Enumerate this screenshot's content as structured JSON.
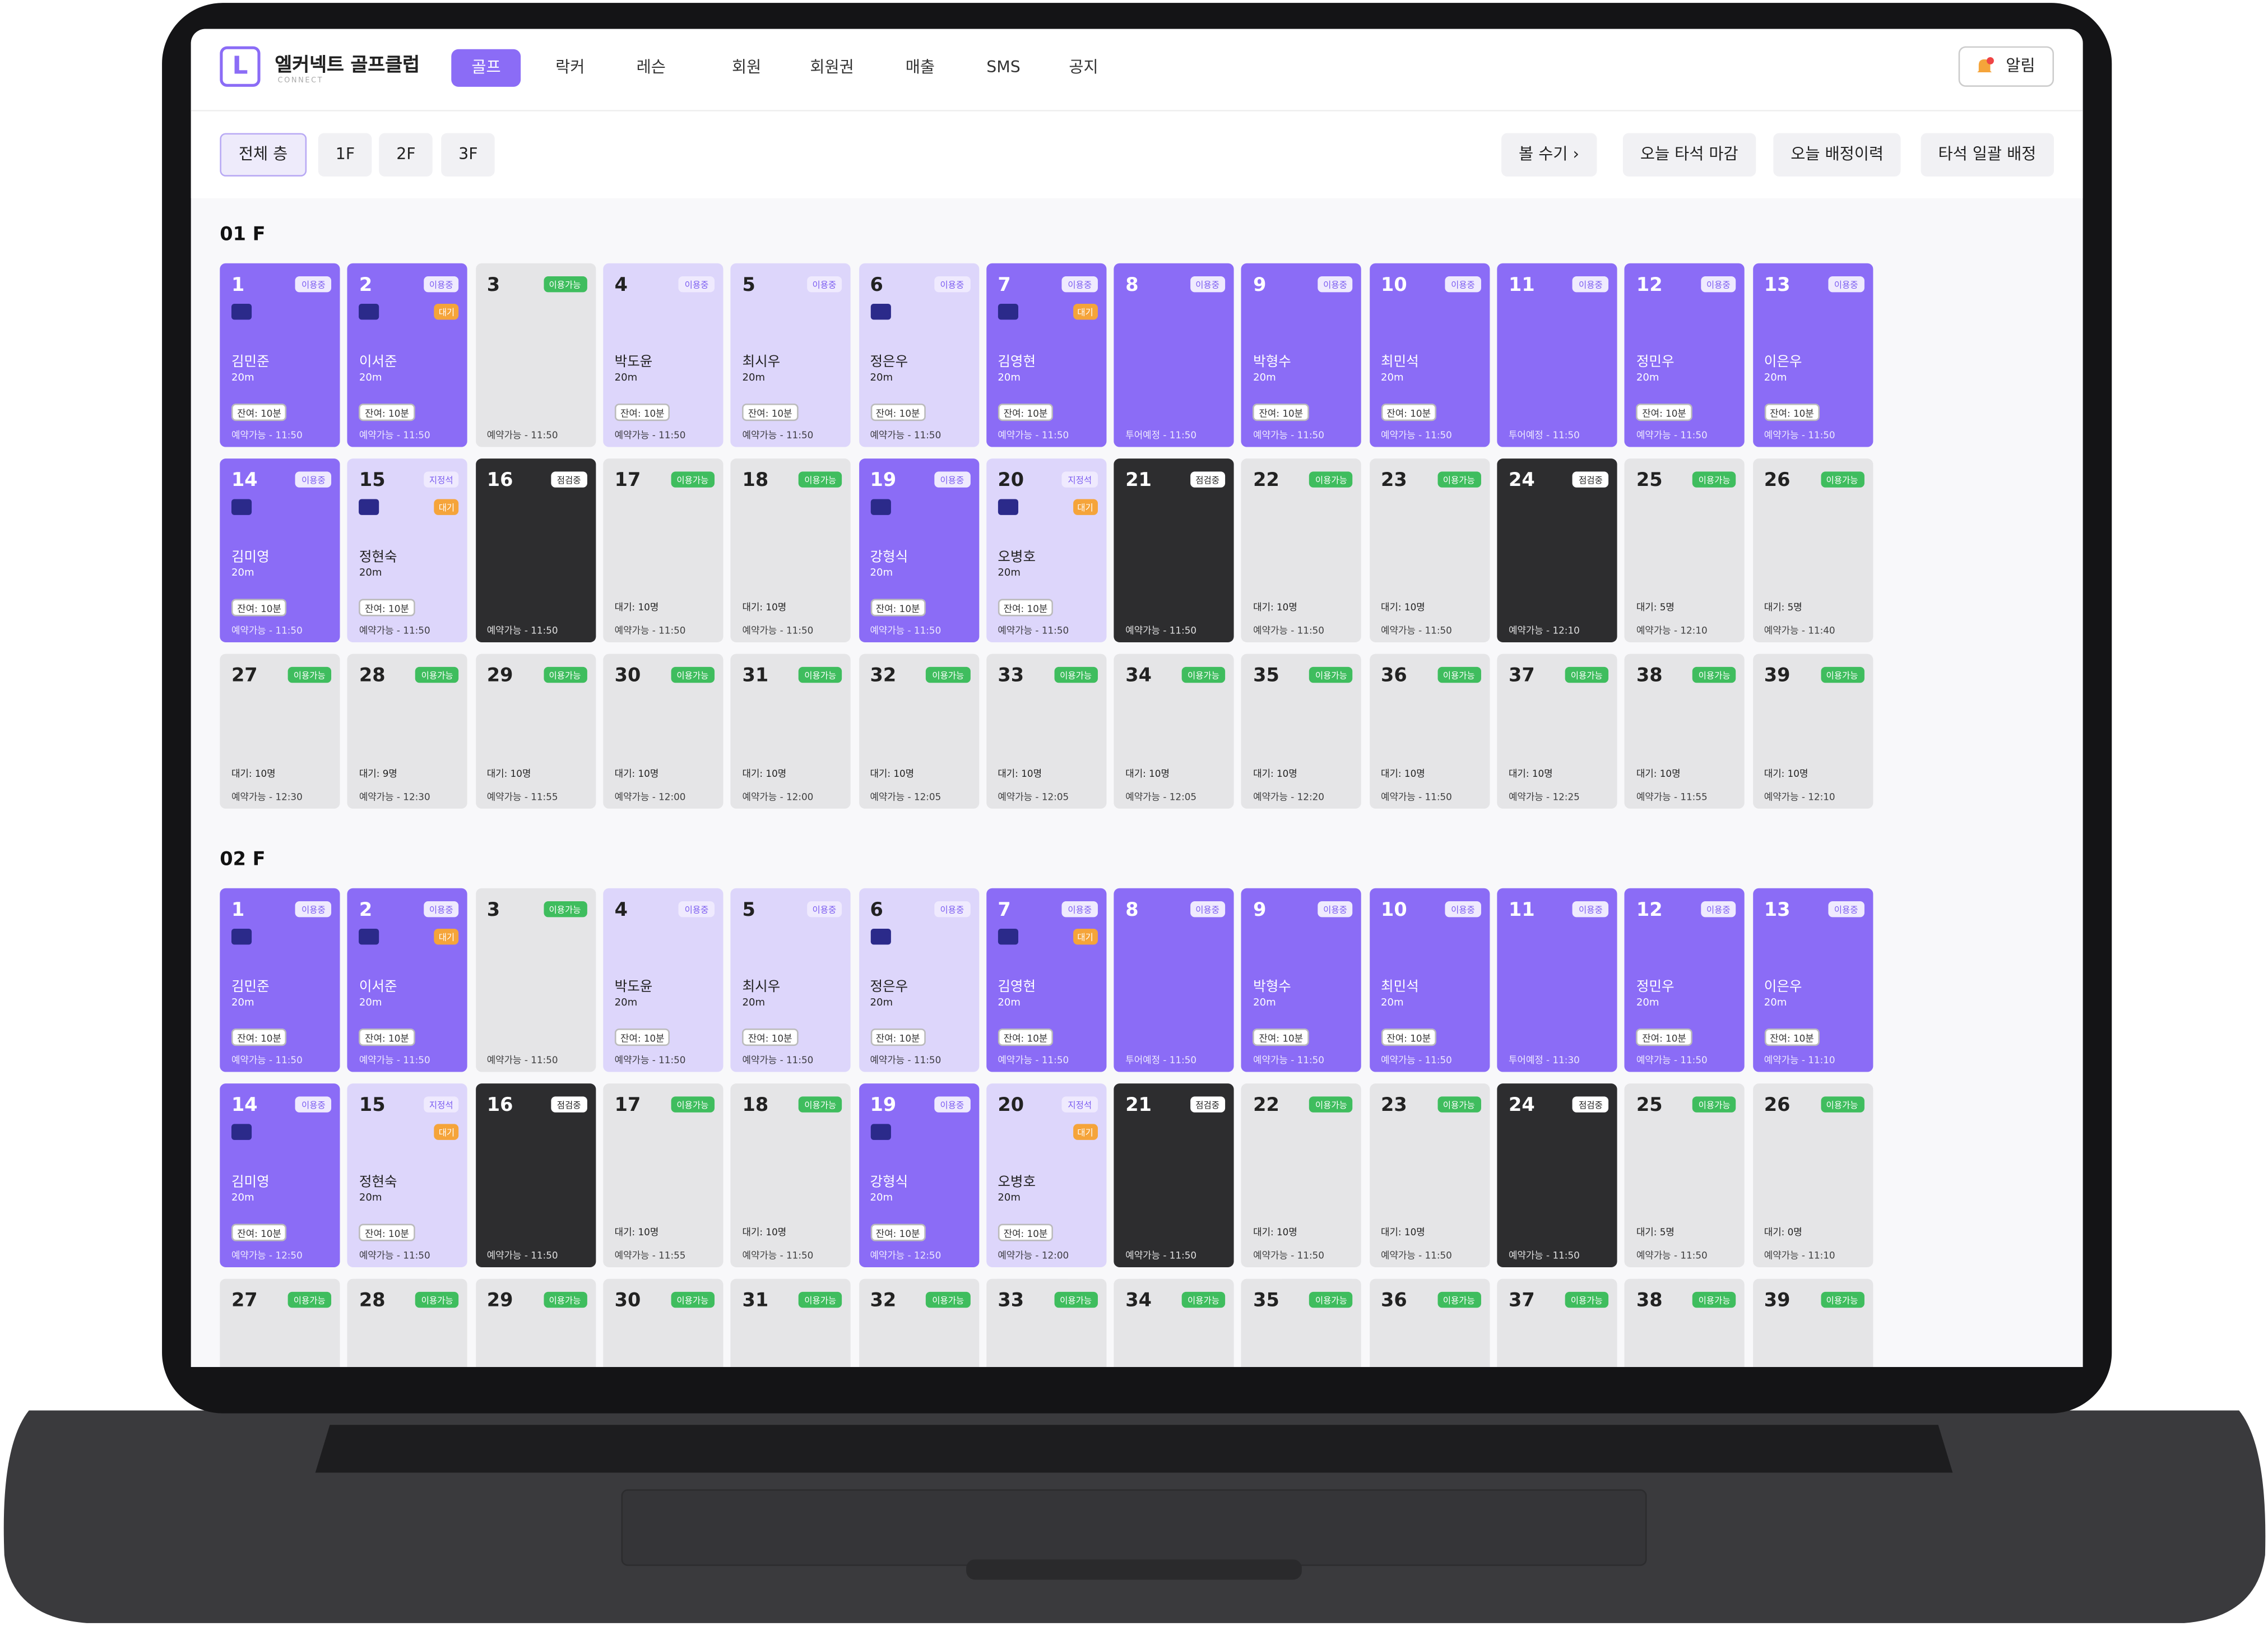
{
  "header": {
    "logo": "L",
    "title": "엘커넥트 골프클럽",
    "subtitle": "CONNECT",
    "nav": [
      {
        "label": "골프",
        "active": true
      },
      {
        "label": "락커"
      },
      {
        "label": "레슨"
      },
      {
        "label": "회원"
      },
      {
        "label": "회원권"
      },
      {
        "label": "매출"
      },
      {
        "label": "SMS"
      },
      {
        "label": "공지"
      }
    ],
    "alert": "알림"
  },
  "toolbar": {
    "filters": [
      {
        "label": "전체 층",
        "active": true
      },
      {
        "label": "1F"
      },
      {
        "label": "2F"
      },
      {
        "label": "3F"
      }
    ],
    "actions": [
      "볼 수기",
      "오늘 타석 마감",
      "오늘 배정이력",
      "타석 일괄 배정"
    ]
  },
  "floors": [
    {
      "title": "01 F",
      "bays": [
        {
          "no": "1",
          "style": "use",
          "badge": "이용중",
          "icon": true,
          "name": "김민준",
          "dist": "20m",
          "chip": "잔여: 10분",
          "foot": "예약가능 - 11:50"
        },
        {
          "no": "2",
          "style": "use",
          "badge": "이용중",
          "icon": true,
          "flag": "대기",
          "name": "이서준",
          "dist": "20m",
          "chip": "잔여: 10분",
          "foot": "예약가능 - 11:50"
        },
        {
          "no": "3",
          "style": "free",
          "badge": "이용가능",
          "foot": "예약가능 - 11:50"
        },
        {
          "no": "4",
          "style": "resv",
          "badge": "이용중",
          "name": "박도윤",
          "dist": "20m",
          "chip": "잔여: 10분",
          "foot": "예약가능 - 11:50"
        },
        {
          "no": "5",
          "style": "resv",
          "badge": "이용중",
          "name": "최시우",
          "dist": "20m",
          "chip": "잔여: 10분",
          "foot": "예약가능 - 11:50"
        },
        {
          "no": "6",
          "style": "resv",
          "badge": "이용중",
          "icon": true,
          "name": "정은우",
          "dist": "20m",
          "chip": "잔여: 10분",
          "foot": "예약가능 - 11:50"
        },
        {
          "no": "7",
          "style": "use",
          "badge": "이용중",
          "icon": true,
          "flag": "대기",
          "name": "김영현",
          "dist": "20m",
          "chip": "잔여: 10분",
          "foot": "예약가능 - 11:50"
        },
        {
          "no": "8",
          "style": "use",
          "badge": "이용중",
          "foot": "투어예정 - 11:50"
        },
        {
          "no": "9",
          "style": "use",
          "badge": "이용중",
          "name": "박형수",
          "dist": "20m",
          "chip": "잔여: 10분",
          "foot": "예약가능 - 11:50"
        },
        {
          "no": "10",
          "style": "use",
          "badge": "이용중",
          "name": "최민석",
          "dist": "20m",
          "chip": "잔여: 10분",
          "foot": "예약가능 - 11:50"
        },
        {
          "no": "11",
          "style": "use",
          "badge": "이용중",
          "foot": "투어예정 - 11:50"
        },
        {
          "no": "12",
          "style": "use",
          "badge": "이용중",
          "name": "정민우",
          "dist": "20m",
          "chip": "잔여: 10분",
          "foot": "예약가능 - 11:50"
        },
        {
          "no": "13",
          "style": "use",
          "badge": "이용중",
          "name": "이은우",
          "dist": "20m",
          "chip": "잔여: 10분",
          "foot": "예약가능 - 11:50"
        },
        {
          "no": "14",
          "style": "use",
          "badge": "이용중",
          "icon": true,
          "name": "김미영",
          "dist": "20m",
          "chip": "잔여: 10분",
          "foot": "예약가능 - 11:50"
        },
        {
          "no": "15",
          "style": "resv",
          "badge": "지정석",
          "icon": true,
          "flag": "대기",
          "name": "정현숙",
          "dist": "20m",
          "chip": "잔여: 10분",
          "foot": "예약가능 - 11:50"
        },
        {
          "no": "16",
          "style": "check",
          "badge": "점검중",
          "foot": "예약가능 - 11:50"
        },
        {
          "no": "17",
          "style": "free",
          "badge": "이용가능",
          "chip": "대기: 10명",
          "foot": "예약가능 - 11:50"
        },
        {
          "no": "18",
          "style": "free",
          "badge": "이용가능",
          "chip": "대기: 10명",
          "foot": "예약가능 - 11:50"
        },
        {
          "no": "19",
          "style": "use",
          "badge": "이용중",
          "icon": true,
          "name": "강형식",
          "dist": "20m",
          "chip": "잔여: 10분",
          "foot": "예약가능 - 11:50"
        },
        {
          "no": "20",
          "style": "resv",
          "badge": "지정석",
          "icon": true,
          "flag": "대기",
          "name": "오병호",
          "dist": "20m",
          "chip": "잔여: 10분",
          "foot": "예약가능 - 11:50"
        },
        {
          "no": "21",
          "style": "check",
          "badge": "점검중",
          "foot": "예약가능 - 11:50"
        },
        {
          "no": "22",
          "style": "free",
          "badge": "이용가능",
          "chip": "대기: 10명",
          "foot": "예약가능 - 11:50"
        },
        {
          "no": "23",
          "style": "free",
          "badge": "이용가능",
          "chip": "대기: 10명",
          "foot": "예약가능 - 11:50"
        },
        {
          "no": "24",
          "style": "check",
          "badge": "점검중",
          "foot": "예약가능 - 12:10"
        },
        {
          "no": "25",
          "style": "free",
          "badge": "이용가능",
          "chip": "대기: 5명",
          "foot": "예약가능 - 12:10"
        },
        {
          "no": "26",
          "style": "free",
          "badge": "이용가능",
          "chip": "대기: 5명",
          "foot": "예약가능 - 11:40"
        },
        {
          "no": "27",
          "style": "free",
          "badge": "이용가능",
          "chip": "대기: 10명",
          "foot": "예약가능 - 12:30"
        },
        {
          "no": "28",
          "style": "free",
          "badge": "이용가능",
          "chip": "대기: 9명",
          "foot": "예약가능 - 12:30"
        },
        {
          "no": "29",
          "style": "free",
          "badge": "이용가능",
          "chip": "대기: 10명",
          "foot": "예약가능 - 11:55"
        },
        {
          "no": "30",
          "style": "free",
          "badge": "이용가능",
          "chip": "대기: 10명",
          "foot": "예약가능 - 12:00"
        },
        {
          "no": "31",
          "style": "free",
          "badge": "이용가능",
          "chip": "대기: 10명",
          "foot": "예약가능 - 12:00"
        },
        {
          "no": "32",
          "style": "free",
          "badge": "이용가능",
          "chip": "대기: 10명",
          "foot": "예약가능 - 12:05"
        },
        {
          "no": "33",
          "style": "free",
          "badge": "이용가능",
          "chip": "대기: 10명",
          "foot": "예약가능 - 12:05"
        },
        {
          "no": "34",
          "style": "free",
          "badge": "이용가능",
          "chip": "대기: 10명",
          "foot": "예약가능 - 12:05"
        },
        {
          "no": "35",
          "style": "free",
          "badge": "이용가능",
          "chip": "대기: 10명",
          "foot": "예약가능 - 12:20"
        },
        {
          "no": "36",
          "style": "free",
          "badge": "이용가능",
          "chip": "대기: 10명",
          "foot": "예약가능 - 11:50"
        },
        {
          "no": "37",
          "style": "free",
          "badge": "이용가능",
          "chip": "대기: 10명",
          "foot": "예약가능 - 12:25"
        },
        {
          "no": "38",
          "style": "free",
          "badge": "이용가능",
          "chip": "대기: 10명",
          "foot": "예약가능 - 11:55"
        },
        {
          "no": "39",
          "style": "free",
          "badge": "이용가능",
          "chip": "대기: 10명",
          "foot": "예약가능 - 12:10"
        }
      ]
    },
    {
      "title": "02 F",
      "bays": [
        {
          "no": "1",
          "style": "use",
          "badge": "이용중",
          "icon": true,
          "name": "김민준",
          "dist": "20m",
          "chip": "잔여: 10분",
          "foot": "예약가능 - 11:50"
        },
        {
          "no": "2",
          "style": "use",
          "badge": "이용중",
          "icon": true,
          "flag": "대기",
          "name": "이서준",
          "dist": "20m",
          "chip": "잔여: 10분",
          "foot": "예약가능 - 11:50"
        },
        {
          "no": "3",
          "style": "free",
          "badge": "이용가능",
          "foot": "예약가능 - 11:50"
        },
        {
          "no": "4",
          "style": "resv",
          "badge": "이용중",
          "name": "박도윤",
          "dist": "20m",
          "chip": "잔여: 10분",
          "foot": "예약가능 - 11:50"
        },
        {
          "no": "5",
          "style": "resv",
          "badge": "이용중",
          "name": "최시우",
          "dist": "20m",
          "chip": "잔여: 10분",
          "foot": "예약가능 - 11:50"
        },
        {
          "no": "6",
          "style": "resv",
          "badge": "이용중",
          "icon": true,
          "name": "정은우",
          "dist": "20m",
          "chip": "잔여: 10분",
          "foot": "예약가능 - 11:50"
        },
        {
          "no": "7",
          "style": "use",
          "badge": "이용중",
          "icon": true,
          "flag": "대기",
          "name": "김영현",
          "dist": "20m",
          "chip": "잔여: 10분",
          "foot": "예약가능 - 11:50"
        },
        {
          "no": "8",
          "style": "use",
          "badge": "이용중",
          "foot": "투어예정 - 11:50"
        },
        {
          "no": "9",
          "style": "use",
          "badge": "이용중",
          "name": "박형수",
          "dist": "20m",
          "chip": "잔여: 10분",
          "foot": "예약가능 - 11:50"
        },
        {
          "no": "10",
          "style": "use",
          "badge": "이용중",
          "name": "최민석",
          "dist": "20m",
          "chip": "잔여: 10분",
          "foot": "예약가능 - 11:50"
        },
        {
          "no": "11",
          "style": "use",
          "badge": "이용중",
          "foot": "투어예정 - 11:30"
        },
        {
          "no": "12",
          "style": "use",
          "badge": "이용중",
          "name": "정민우",
          "dist": "20m",
          "chip": "잔여: 10분",
          "foot": "예약가능 - 11:50"
        },
        {
          "no": "13",
          "style": "use",
          "badge": "이용중",
          "name": "이은우",
          "dist": "20m",
          "chip": "잔여: 10분",
          "foot": "예약가능 - 11:10"
        },
        {
          "no": "14",
          "style": "use",
          "badge": "이용중",
          "icon": true,
          "name": "김미영",
          "dist": "20m",
          "chip": "잔여: 10분",
          "foot": "예약가능 - 12:50"
        },
        {
          "no": "15",
          "style": "resv",
          "badge": "지정석",
          "flag": "대기",
          "name": "정현숙",
          "dist": "20m",
          "chip": "잔여: 10분",
          "foot": "예약가능 - 11:50"
        },
        {
          "no": "16",
          "style": "check",
          "badge": "점검중",
          "foot": "예약가능 - 11:50"
        },
        {
          "no": "17",
          "style": "free",
          "badge": "이용가능",
          "chip": "대기: 10명",
          "foot": "예약가능 - 11:55"
        },
        {
          "no": "18",
          "style": "free",
          "badge": "이용가능",
          "chip": "대기: 10명",
          "foot": "예약가능 - 11:50"
        },
        {
          "no": "19",
          "style": "use",
          "badge": "이용중",
          "icon": true,
          "name": "강형식",
          "dist": "20m",
          "chip": "잔여: 10분",
          "foot": "예약가능 - 12:50"
        },
        {
          "no": "20",
          "style": "resv",
          "badge": "지정석",
          "flag": "대기",
          "name": "오병호",
          "dist": "20m",
          "chip": "잔여: 10분",
          "foot": "예약가능 - 12:00"
        },
        {
          "no": "21",
          "style": "check",
          "badge": "점검중",
          "foot": "예약가능 - 11:50"
        },
        {
          "no": "22",
          "style": "free",
          "badge": "이용가능",
          "chip": "대기: 10명",
          "foot": "예약가능 - 11:50"
        },
        {
          "no": "23",
          "style": "free",
          "badge": "이용가능",
          "chip": "대기: 10명",
          "foot": "예약가능 - 11:50"
        },
        {
          "no": "24",
          "style": "check",
          "badge": "점검중",
          "foot": "예약가능 - 11:50"
        },
        {
          "no": "25",
          "style": "free",
          "badge": "이용가능",
          "chip": "대기: 5명",
          "foot": "예약가능 - 11:50"
        },
        {
          "no": "26",
          "style": "free",
          "badge": "이용가능",
          "chip": "대기: 0명",
          "foot": "예약가능 - 11:10"
        },
        {
          "no": "27",
          "style": "free",
          "badge": "이용가능"
        },
        {
          "no": "28",
          "style": "free",
          "badge": "이용가능"
        },
        {
          "no": "29",
          "style": "free",
          "badge": "이용가능"
        },
        {
          "no": "30",
          "style": "free",
          "badge": "이용가능"
        },
        {
          "no": "31",
          "style": "free",
          "badge": "이용가능"
        },
        {
          "no": "32",
          "style": "free",
          "badge": "이용가능"
        },
        {
          "no": "33",
          "style": "free",
          "badge": "이용가능"
        },
        {
          "no": "34",
          "style": "free",
          "badge": "이용가능"
        },
        {
          "no": "35",
          "style": "free",
          "badge": "이용가능"
        },
        {
          "no": "36",
          "style": "free",
          "badge": "이용가능"
        },
        {
          "no": "37",
          "style": "free",
          "badge": "이용가능"
        },
        {
          "no": "38",
          "style": "free",
          "badge": "이용가능"
        },
        {
          "no": "39",
          "style": "free",
          "badge": "이용가능"
        }
      ]
    }
  ]
}
